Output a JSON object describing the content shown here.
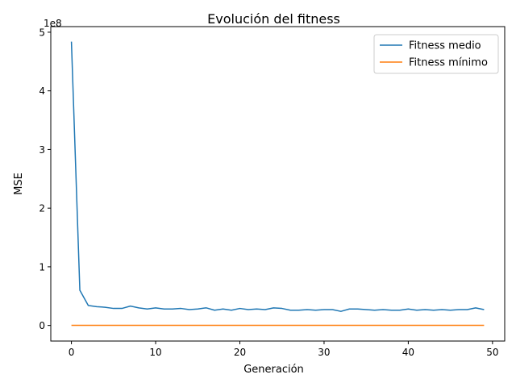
{
  "chart_data": {
    "type": "line",
    "title": "Evolución del fitness",
    "xlabel": "Generación",
    "ylabel": "MSE",
    "y_offset_label": "1e8",
    "xlim": [
      -2.45,
      51.45
    ],
    "ylim": [
      -0.266,
      5.0955
    ],
    "x_ticks": [
      0,
      10,
      20,
      30,
      40,
      50
    ],
    "y_ticks": [
      0,
      1,
      2,
      3,
      4,
      5
    ],
    "y_tick_labels": [
      "0",
      "1",
      "2",
      "3",
      "4",
      "5"
    ],
    "grid": false,
    "legend_position": "upper right",
    "x": [
      0,
      1,
      2,
      3,
      4,
      5,
      6,
      7,
      8,
      9,
      10,
      11,
      12,
      13,
      14,
      15,
      16,
      17,
      18,
      19,
      20,
      21,
      22,
      23,
      24,
      25,
      26,
      27,
      28,
      29,
      30,
      31,
      32,
      33,
      34,
      35,
      36,
      37,
      38,
      39,
      40,
      41,
      42,
      43,
      44,
      45,
      46,
      47,
      48,
      49
    ],
    "series": [
      {
        "name": "Fitness medio",
        "color": "#1f77b4",
        "values": [
          4.84,
          0.6,
          0.34,
          0.32,
          0.31,
          0.29,
          0.29,
          0.33,
          0.3,
          0.28,
          0.3,
          0.28,
          0.28,
          0.29,
          0.27,
          0.28,
          0.3,
          0.26,
          0.28,
          0.26,
          0.29,
          0.27,
          0.28,
          0.27,
          0.3,
          0.29,
          0.26,
          0.26,
          0.27,
          0.26,
          0.27,
          0.27,
          0.24,
          0.28,
          0.28,
          0.27,
          0.26,
          0.27,
          0.26,
          0.26,
          0.28,
          0.26,
          0.27,
          0.26,
          0.27,
          0.26,
          0.27,
          0.27,
          0.3,
          0.27
        ]
      },
      {
        "name": "Fitness mínimo",
        "color": "#ff7f0e",
        "values": [
          0.002,
          0.002,
          0.002,
          0.002,
          0.002,
          0.002,
          0.002,
          0.002,
          0.002,
          0.002,
          0.002,
          0.002,
          0.002,
          0.002,
          0.002,
          0.002,
          0.002,
          0.002,
          0.002,
          0.002,
          0.002,
          0.002,
          0.002,
          0.002,
          0.002,
          0.002,
          0.002,
          0.002,
          0.002,
          0.002,
          0.002,
          0.002,
          0.002,
          0.002,
          0.002,
          0.002,
          0.002,
          0.002,
          0.002,
          0.002,
          0.002,
          0.002,
          0.002,
          0.002,
          0.002,
          0.002,
          0.002,
          0.002,
          0.002,
          0.002
        ]
      }
    ]
  }
}
